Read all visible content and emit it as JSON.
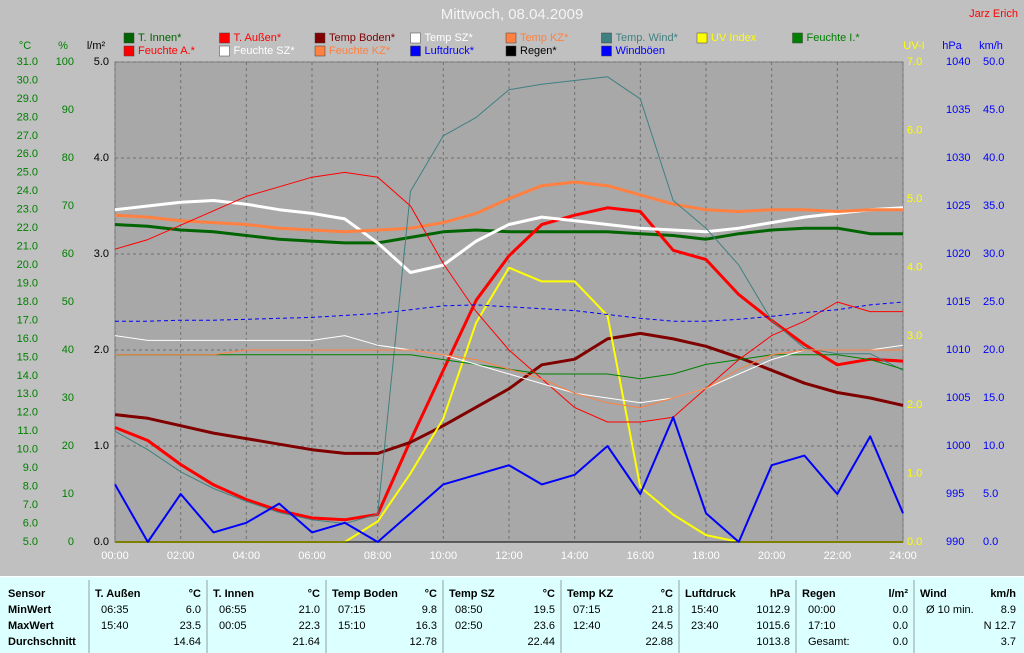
{
  "chart_data": {
    "type": "line",
    "title": "Mittwoch, 08.04.2009",
    "annotations": [
      "Jarz Erich"
    ],
    "grid": true,
    "x": [
      0,
      1,
      2,
      3,
      4,
      5,
      6,
      7,
      8,
      9,
      10,
      11,
      12,
      13,
      14,
      15,
      16,
      17,
      18,
      19,
      20,
      21,
      22,
      23,
      24
    ],
    "xlim": [
      0,
      24
    ],
    "xticks": [
      {
        "value": 0,
        "label": "00:00"
      },
      {
        "value": 2,
        "label": "02:00"
      },
      {
        "value": 4,
        "label": "04:00"
      },
      {
        "value": 6,
        "label": "06:00"
      },
      {
        "value": 8,
        "label": "08:00"
      },
      {
        "value": 10,
        "label": "10:00"
      },
      {
        "value": 12,
        "label": "12:00"
      },
      {
        "value": 14,
        "label": "14:00"
      },
      {
        "value": 16,
        "label": "16:00"
      },
      {
        "value": 18,
        "label": "18:00"
      },
      {
        "value": 20,
        "label": "20:00"
      },
      {
        "value": 22,
        "label": "22:00"
      },
      {
        "value": 24,
        "label": "24:00"
      }
    ],
    "axes": [
      {
        "label": "°C",
        "color": "#008000",
        "lim": [
          5,
          31
        ],
        "ticks": [
          {
            "value": 5,
            "label": "5.0"
          },
          {
            "value": 6,
            "label": "6.0"
          },
          {
            "value": 7,
            "label": "7.0"
          },
          {
            "value": 8,
            "label": "8.0"
          },
          {
            "value": 9,
            "label": "9.0"
          },
          {
            "value": 10,
            "label": "10.0"
          },
          {
            "value": 11,
            "label": "11.0"
          },
          {
            "value": 12,
            "label": "12.0"
          },
          {
            "value": 13,
            "label": "13.0"
          },
          {
            "value": 14,
            "label": "14.0"
          },
          {
            "value": 15,
            "label": "15.0"
          },
          {
            "value": 16,
            "label": "16.0"
          },
          {
            "value": 17,
            "label": "17.0"
          },
          {
            "value": 18,
            "label": "18.0"
          },
          {
            "value": 19,
            "label": "19.0"
          },
          {
            "value": 20,
            "label": "20.0"
          },
          {
            "value": 21,
            "label": "21.0"
          },
          {
            "value": 22,
            "label": "22.0"
          },
          {
            "value": 23,
            "label": "23.0"
          },
          {
            "value": 24,
            "label": "24.0"
          },
          {
            "value": 25,
            "label": "25.0"
          },
          {
            "value": 26,
            "label": "26.0"
          },
          {
            "value": 27,
            "label": "27.0"
          },
          {
            "value": 28,
            "label": "28.0"
          },
          {
            "value": 29,
            "label": "29.0"
          },
          {
            "value": 30,
            "label": "30.0"
          },
          {
            "value": 31,
            "label": "31.0"
          }
        ]
      },
      {
        "label": "%",
        "color": "#008000",
        "lim": [
          0,
          100
        ],
        "ticks": [
          0,
          10,
          20,
          30,
          40,
          50,
          60,
          70,
          80,
          90,
          100
        ]
      },
      {
        "label": "l/m²",
        "color": "#000000",
        "lim": [
          0,
          5
        ],
        "ticks": [
          {
            "value": 0,
            "label": "0.0"
          },
          {
            "value": 1,
            "label": "1.0"
          },
          {
            "value": 2,
            "label": "2.0"
          },
          {
            "value": 3,
            "label": "3.0"
          },
          {
            "value": 4,
            "label": "4.0"
          },
          {
            "value": 5,
            "label": "5.0"
          }
        ]
      },
      {
        "label": "UV-I",
        "color": "#ffff00",
        "lim": [
          0,
          7
        ],
        "ticks": [
          {
            "value": 0,
            "label": "0.0"
          },
          {
            "value": 1,
            "label": "1.0"
          },
          {
            "value": 2,
            "label": "2.0"
          },
          {
            "value": 3,
            "label": "3.0"
          },
          {
            "value": 4,
            "label": "4.0"
          },
          {
            "value": 5,
            "label": "5.0"
          },
          {
            "value": 6,
            "label": "6.0"
          },
          {
            "value": 7,
            "label": "7.0"
          }
        ]
      },
      {
        "label": "hPa",
        "color": "#0000ff",
        "lim": [
          990,
          1040
        ],
        "ticks": [
          990,
          995,
          1000,
          1005,
          1010,
          1015,
          1020,
          1025,
          1030,
          1035,
          1040
        ]
      },
      {
        "label": "km/h",
        "color": "#0000ff",
        "lim": [
          0,
          50
        ],
        "ticks": [
          {
            "value": 0,
            "label": "0.0"
          },
          {
            "value": 5,
            "label": "5.0"
          },
          {
            "value": 10,
            "label": "10.0"
          },
          {
            "value": 15,
            "label": "15.0"
          },
          {
            "value": 20,
            "label": "20.0"
          },
          {
            "value": 25,
            "label": "25.0"
          },
          {
            "value": 30,
            "label": "30.0"
          },
          {
            "value": 35,
            "label": "35.0"
          },
          {
            "value": 40,
            "label": "40.0"
          },
          {
            "value": 45,
            "label": "45.0"
          },
          {
            "value": 50,
            "label": "50.0"
          }
        ]
      }
    ],
    "series": [
      {
        "name": "T. Innen*",
        "color": "#006400",
        "axis": 0,
        "width": 3,
        "values": [
          22.2,
          22.1,
          21.9,
          21.8,
          21.6,
          21.4,
          21.3,
          21.2,
          21.2,
          21.5,
          21.8,
          21.9,
          21.8,
          21.8,
          21.8,
          21.8,
          21.7,
          21.6,
          21.4,
          21.7,
          21.9,
          22.0,
          22.0,
          21.7,
          21.7
        ]
      },
      {
        "name": "T. Außen*",
        "color": "#ff0000",
        "axis": 0,
        "width": 3,
        "values": [
          11.2,
          10.5,
          9.2,
          8.1,
          7.3,
          6.7,
          6.3,
          6.2,
          6.5,
          10.5,
          14.3,
          18.1,
          20.5,
          22.2,
          22.7,
          23.1,
          22.9,
          20.8,
          20.3,
          18.4,
          17.0,
          15.7,
          14.6,
          14.9,
          14.8
        ]
      },
      {
        "name": "Temp Boden*",
        "color": "#800000",
        "axis": 0,
        "width": 3,
        "values": [
          11.9,
          11.7,
          11.3,
          10.9,
          10.6,
          10.3,
          10.0,
          9.8,
          9.8,
          10.4,
          11.3,
          12.3,
          13.3,
          14.6,
          14.9,
          16.0,
          16.3,
          16.0,
          15.6,
          15.0,
          14.3,
          13.6,
          13.1,
          12.8,
          12.4
        ]
      },
      {
        "name": "Temp SZ*",
        "color": "#ffffff",
        "axis": 0,
        "width": 3,
        "values": [
          23.0,
          23.2,
          23.4,
          23.5,
          23.3,
          23.0,
          22.8,
          22.5,
          21.2,
          19.6,
          20.0,
          21.3,
          22.2,
          22.6,
          22.4,
          22.2,
          22.0,
          21.9,
          21.8,
          22.0,
          22.3,
          22.6,
          22.8,
          23.0,
          23.1
        ]
      },
      {
        "name": "Temp KZ*",
        "color": "#ff8040",
        "axis": 0,
        "width": 3,
        "values": [
          22.7,
          22.6,
          22.4,
          22.3,
          22.2,
          22.0,
          21.9,
          21.8,
          21.9,
          22.0,
          22.3,
          22.8,
          23.6,
          24.3,
          24.5,
          24.3,
          23.8,
          23.3,
          23.0,
          22.9,
          23.0,
          23.0,
          22.9,
          23.0,
          23.0
        ]
      },
      {
        "name": "Temp. Wind*",
        "color": "#408080",
        "axis": 0,
        "width": 1,
        "values": [
          11.0,
          10.0,
          8.8,
          7.9,
          7.2,
          6.6,
          6.2,
          6.0,
          6.5,
          24.0,
          27.0,
          28.0,
          29.5,
          29.8,
          30.0,
          30.2,
          29.0,
          23.5,
          22.0,
          20.0,
          17.0,
          15.5,
          15.2,
          15.2,
          14.3
        ]
      },
      {
        "name": "UV Index",
        "color": "#ffff00",
        "axis": 3,
        "width": 2,
        "values": [
          0,
          0,
          0,
          0,
          0,
          0,
          0,
          0,
          0.3,
          1.0,
          1.8,
          3.2,
          4.0,
          3.8,
          3.8,
          3.3,
          0.8,
          0.4,
          0.1,
          0,
          0,
          0,
          0,
          0,
          0
        ]
      },
      {
        "name": "Feuchte I.*",
        "color": "#008000",
        "axis": 1,
        "width": 1,
        "values": [
          39,
          39,
          39,
          39,
          39,
          39,
          39,
          39,
          39,
          39,
          38,
          37,
          36,
          35,
          35,
          35,
          34,
          35,
          37,
          38,
          39,
          39,
          39,
          38,
          36
        ]
      },
      {
        "name": "Feuchte A.*",
        "color": "#ff0000",
        "axis": 1,
        "width": 1,
        "values": [
          61,
          63,
          66,
          69,
          72,
          74,
          76,
          77,
          76,
          70,
          58,
          48,
          40,
          34,
          28,
          25,
          25,
          26,
          32,
          38,
          43,
          46,
          50,
          48,
          48
        ]
      },
      {
        "name": "Feuchte SZ*",
        "color": "#ffffff",
        "axis": 1,
        "width": 1,
        "values": [
          43,
          42,
          42,
          42,
          42,
          42,
          42,
          43,
          41,
          40,
          39,
          37,
          35,
          33,
          31,
          30,
          29,
          30,
          32,
          35,
          38,
          40,
          40,
          40,
          41
        ]
      },
      {
        "name": "Feuchte KZ*",
        "color": "#ff8040",
        "axis": 1,
        "width": 1,
        "values": [
          39,
          39,
          39,
          39,
          40,
          40,
          40,
          40,
          40,
          40,
          39,
          38,
          36,
          34,
          31,
          29,
          28,
          30,
          32,
          36,
          39,
          40,
          40,
          40,
          40
        ]
      },
      {
        "name": "Luftdruck*",
        "color": "#0000ff",
        "axis": 4,
        "width": 1,
        "dashed": true,
        "values": [
          1013.0,
          1013.0,
          1013.1,
          1013.1,
          1013.2,
          1013.3,
          1013.4,
          1013.6,
          1013.8,
          1014.2,
          1014.6,
          1014.7,
          1014.5,
          1014.3,
          1014.1,
          1013.7,
          1013.3,
          1013.0,
          1013.0,
          1013.2,
          1013.5,
          1013.9,
          1014.2,
          1014.7,
          1015.0
        ]
      },
      {
        "name": "Regen*",
        "color": "#000000",
        "axis": 2,
        "width": 1,
        "values": [
          0,
          0,
          0,
          0,
          0,
          0,
          0,
          0,
          0,
          0,
          0,
          0,
          0,
          0,
          0,
          0,
          0,
          0,
          0,
          0,
          0,
          0,
          0,
          0,
          0
        ]
      },
      {
        "name": "Windböen",
        "color": "#0000ff",
        "axis": 5,
        "width": 2,
        "values": [
          6,
          0,
          5,
          1,
          2,
          4,
          1,
          2,
          0,
          3,
          6,
          7,
          8,
          6,
          7,
          10,
          5,
          13,
          3,
          0,
          8,
          9,
          5,
          11,
          3
        ]
      }
    ]
  },
  "stats": {
    "header": "Sensor",
    "columns": [
      {
        "name": "T. Außen",
        "unit": "°C"
      },
      {
        "name": "T. Innen",
        "unit": "°C"
      },
      {
        "name": "Temp Boden",
        "unit": "°C"
      },
      {
        "name": "Temp SZ",
        "unit": "°C"
      },
      {
        "name": "Temp KZ",
        "unit": "°C"
      },
      {
        "name": "Luftdruck",
        "unit": "hPa"
      },
      {
        "name": "Regen",
        "unit": "l/m²"
      },
      {
        "name": "Wind",
        "unit": "km/h"
      }
    ],
    "rows": [
      {
        "label": "MinWert",
        "cells": [
          {
            "time": "06:35",
            "value": "6.0"
          },
          {
            "time": "06:55",
            "value": "21.0"
          },
          {
            "time": "07:15",
            "value": "9.8"
          },
          {
            "time": "08:50",
            "value": "19.5"
          },
          {
            "time": "07:15",
            "value": "21.8"
          },
          {
            "time": "15:40",
            "value": "1012.9"
          },
          {
            "time": "00:00",
            "value": "0.0"
          },
          {
            "time": "Ø 10 min.",
            "value": "8.9"
          }
        ]
      },
      {
        "label": "MaxWert",
        "cells": [
          {
            "time": "15:40",
            "value": "23.5"
          },
          {
            "time": "00:05",
            "value": "22.3"
          },
          {
            "time": "15:10",
            "value": "16.3"
          },
          {
            "time": "02:50",
            "value": "23.6"
          },
          {
            "time": "12:40",
            "value": "24.5"
          },
          {
            "time": "23:40",
            "value": "1015.6"
          },
          {
            "time": "17:10",
            "value": "0.0"
          },
          {
            "value": "N 12.7"
          }
        ]
      },
      {
        "label": "Durchschnitt",
        "cells": [
          {
            "value": "14.64"
          },
          {
            "value": "21.64"
          },
          {
            "value": "12.78"
          },
          {
            "value": "22.44"
          },
          {
            "value": "22.88"
          },
          {
            "value": "1013.8"
          },
          {
            "time": "Gesamt:",
            "value": "0.0"
          },
          {
            "value": "3.7"
          }
        ]
      }
    ]
  }
}
